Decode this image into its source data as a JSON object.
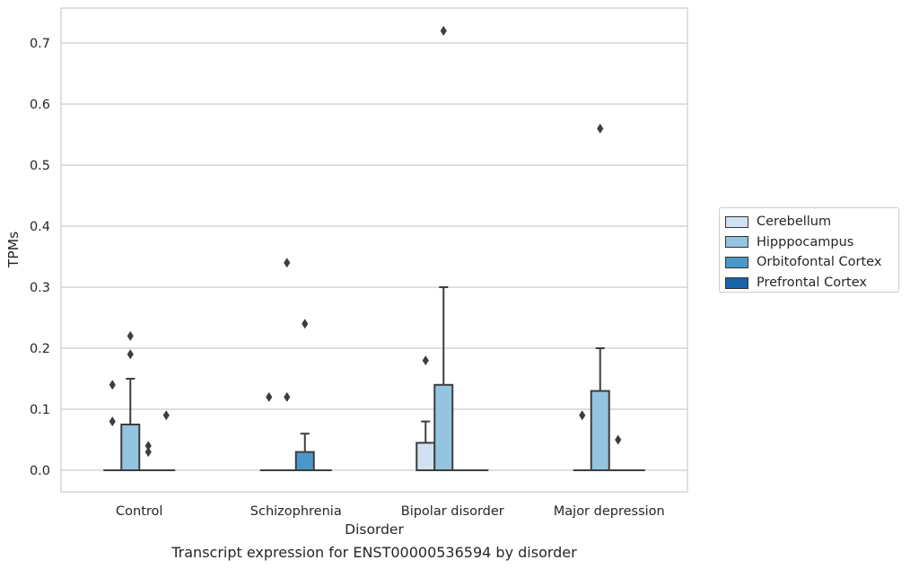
{
  "caption": "Transcript expression for ENST00000536594 by disorder",
  "chart_data": {
    "type": "box",
    "xlabel": "Disorder",
    "ylabel": "TPMs",
    "categories": [
      "Control",
      "Schizophrenia",
      "Bipolar disorder",
      "Major depression"
    ],
    "ylim": [
      -0.035,
      0.76
    ],
    "yticks": [
      0.0,
      0.1,
      0.2,
      0.3,
      0.4,
      0.5,
      0.6,
      0.7
    ],
    "ytick_labels": [
      "0.0",
      "0.1",
      "0.2",
      "0.3",
      "0.4",
      "0.5",
      "0.6",
      "0.7"
    ],
    "grid": "horizontal",
    "legend_position": "right",
    "series": [
      {
        "name": "Cerebellum",
        "color": "#d0e1f2",
        "boxes": [
          {
            "q1": 0,
            "median": 0,
            "q3": 0,
            "whisker_low": 0,
            "whisker_high": 0,
            "outliers": [
              0.08,
              0.14
            ]
          },
          {
            "q1": 0,
            "median": 0,
            "q3": 0,
            "whisker_low": 0,
            "whisker_high": 0,
            "outliers": [
              0.12
            ]
          },
          {
            "q1": 0,
            "median": 0,
            "q3": 0.045,
            "whisker_low": 0,
            "whisker_high": 0.08,
            "outliers": [
              0.18
            ]
          },
          {
            "q1": 0,
            "median": 0,
            "q3": 0,
            "whisker_low": 0,
            "whisker_high": 0,
            "outliers": [
              0.09
            ]
          }
        ]
      },
      {
        "name": "Hipppocampus",
        "color": "#94c4df",
        "boxes": [
          {
            "q1": 0,
            "median": 0,
            "q3": 0.075,
            "whisker_low": 0,
            "whisker_high": 0.15,
            "outliers": [
              0.19,
              0.22
            ]
          },
          {
            "q1": 0,
            "median": 0,
            "q3": 0,
            "whisker_low": 0,
            "whisker_high": 0,
            "outliers": [
              0.12,
              0.34
            ]
          },
          {
            "q1": 0,
            "median": 0,
            "q3": 0.14,
            "whisker_low": 0,
            "whisker_high": 0.3,
            "outliers": [
              0.72
            ]
          },
          {
            "q1": 0,
            "median": 0,
            "q3": 0.13,
            "whisker_low": 0,
            "whisker_high": 0.2,
            "outliers": [
              0.56
            ]
          }
        ]
      },
      {
        "name": "Orbitofontal Cortex",
        "color": "#4a98c9",
        "boxes": [
          {
            "q1": 0,
            "median": 0,
            "q3": 0,
            "whisker_low": 0,
            "whisker_high": 0,
            "outliers": [
              0.03,
              0.04
            ]
          },
          {
            "q1": 0,
            "median": 0,
            "q3": 0.03,
            "whisker_low": 0,
            "whisker_high": 0.06,
            "outliers": [
              0.24
            ]
          },
          {
            "q1": 0,
            "median": 0,
            "q3": 0,
            "whisker_low": 0,
            "whisker_high": 0,
            "outliers": []
          },
          {
            "q1": 0,
            "median": 0,
            "q3": 0,
            "whisker_low": 0,
            "whisker_high": 0,
            "outliers": [
              0.05
            ]
          }
        ]
      },
      {
        "name": "Prefrontal Cortex",
        "color": "#1764ab",
        "boxes": [
          {
            "q1": 0,
            "median": 0,
            "q3": 0,
            "whisker_low": 0,
            "whisker_high": 0,
            "outliers": [
              0.09
            ]
          },
          {
            "q1": 0,
            "median": 0,
            "q3": 0,
            "whisker_low": 0,
            "whisker_high": 0,
            "outliers": []
          },
          {
            "q1": 0,
            "median": 0,
            "q3": 0,
            "whisker_low": 0,
            "whisker_high": 0,
            "outliers": []
          },
          {
            "q1": 0,
            "median": 0,
            "q3": 0,
            "whisker_low": 0,
            "whisker_high": 0,
            "outliers": []
          }
        ]
      }
    ]
  }
}
